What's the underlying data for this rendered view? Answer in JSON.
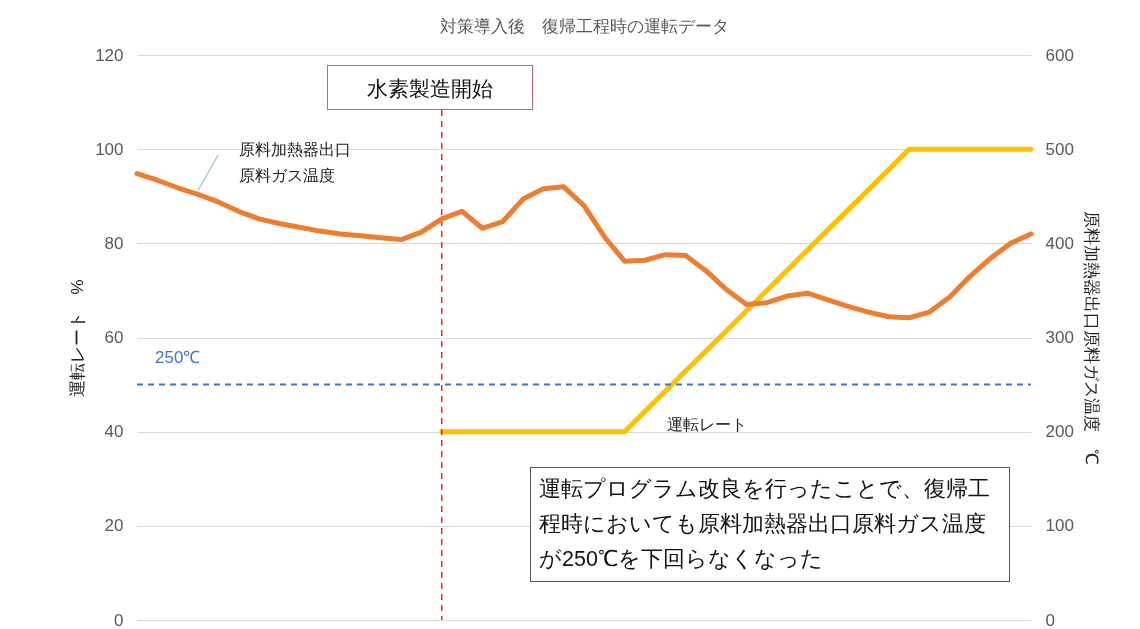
{
  "chart_data": {
    "type": "line",
    "title": "対策導入後　復帰工程時の運転データ",
    "ylabel": "運転レート　%",
    "y2label": "原料加熱器出口原料ガス温度　℃",
    "categories": [
      null,
      null,
      null,
      null,
      null,
      null,
      null,
      null,
      null,
      null,
      null,
      null,
      null,
      null,
      null,
      null,
      null,
      null,
      null,
      null,
      null,
      null,
      null,
      null,
      null,
      null,
      null,
      null,
      null,
      null,
      null,
      null,
      null,
      null,
      null,
      null,
      null,
      null,
      null,
      null,
      null,
      null,
      null,
      null,
      null
    ],
    "ylim": [
      0,
      120
    ],
    "yticks": [
      0,
      20,
      40,
      60,
      80,
      100,
      120
    ],
    "y2lim": [
      0,
      600
    ],
    "y2ticks": [
      0,
      100,
      200,
      300,
      400,
      500,
      600
    ],
    "grid": "y",
    "series": [
      {
        "name": "運転レート",
        "axis": "y",
        "color": "#ffc000",
        "values": [
          null,
          null,
          null,
          null,
          null,
          null,
          null,
          null,
          null,
          null,
          null,
          null,
          null,
          null,
          null,
          40,
          40,
          40,
          40,
          40,
          40,
          40,
          40,
          40,
          40,
          44.3,
          48.6,
          52.9,
          57.1,
          61.4,
          65.7,
          70,
          74.3,
          78.6,
          82.9,
          87.1,
          91.4,
          95.7,
          100,
          100,
          100,
          100,
          100,
          100,
          100
        ]
      },
      {
        "name": "原料加熱器出口原料ガス温度",
        "axis": "y2",
        "color": "#ed7d31",
        "values": [
          474,
          467,
          459,
          452,
          444,
          434,
          426,
          421,
          417,
          413,
          410,
          408,
          406,
          404,
          412,
          426,
          434,
          416,
          423,
          447,
          458,
          460,
          440,
          407,
          381,
          382,
          388,
          387,
          371,
          351,
          335,
          337,
          344,
          347,
          340,
          333,
          327,
          322,
          321,
          327,
          343,
          365,
          384,
          400,
          410
        ]
      }
    ],
    "ref_lines": [
      {
        "axis": "y2",
        "value": 250,
        "label": "250℃",
        "color": "#4472c4",
        "line_style": "dashed"
      }
    ],
    "annotations": [
      "水素製造開始",
      "運転プログラム改良を行ったことで、復帰工程時においても原料加熱器出口原料ガス温度が250℃を下回らなくなった"
    ]
  }
}
